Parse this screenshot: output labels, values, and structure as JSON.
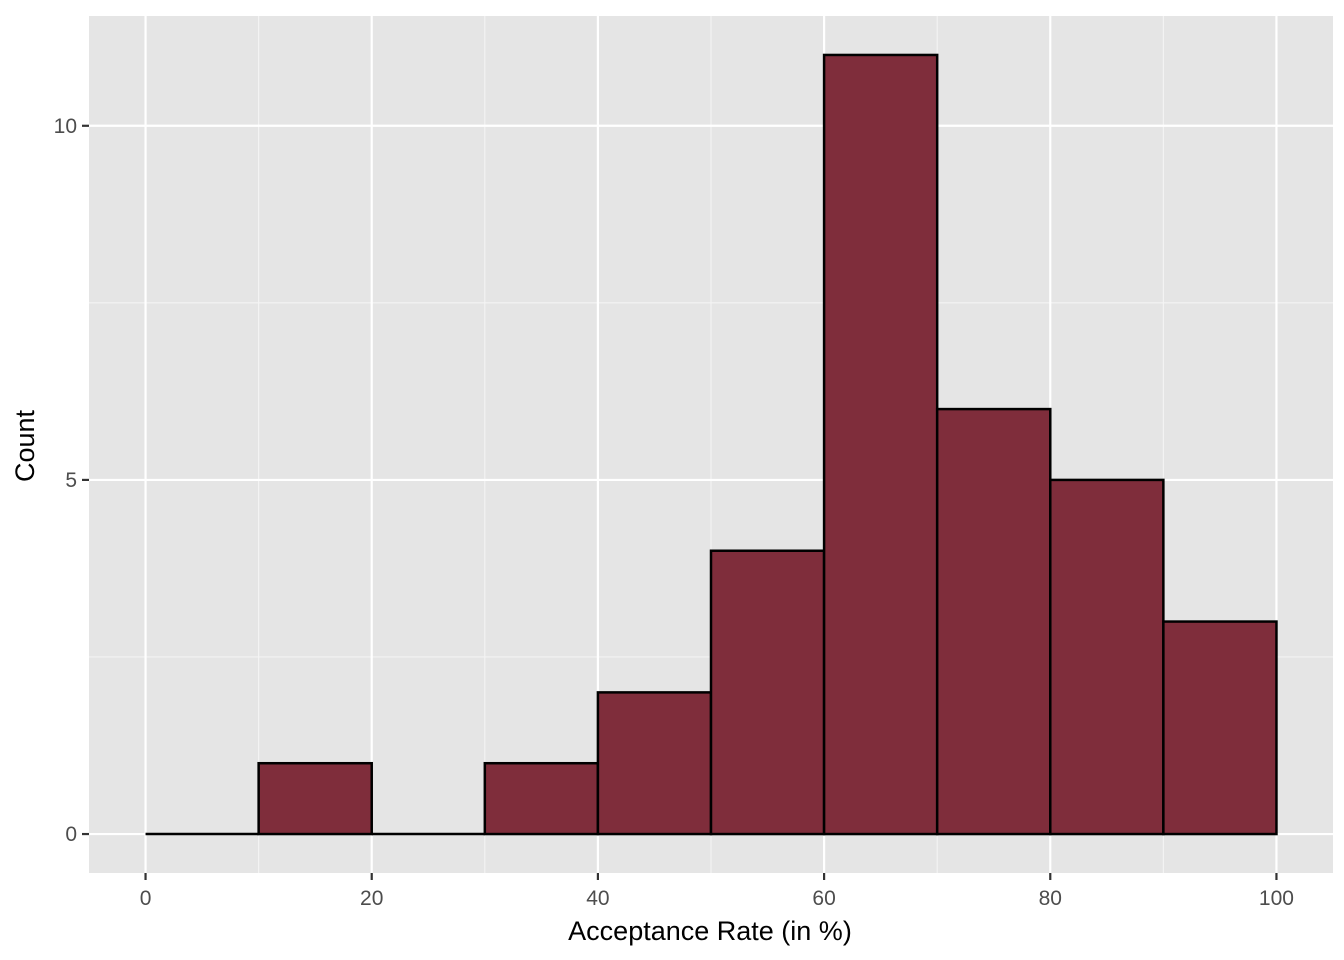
{
  "chart_data": {
    "type": "bar",
    "subtype": "histogram",
    "title": "",
    "xlabel": "Acceptance Rate (in %)",
    "ylabel": "Count",
    "bin_edges": [
      0,
      10,
      20,
      30,
      40,
      50,
      60,
      70,
      80,
      90,
      100
    ],
    "values": [
      0,
      1,
      0,
      1,
      2,
      4,
      11,
      6,
      5,
      3
    ],
    "xlim": [
      -5,
      105
    ],
    "ylim": [
      -0.55,
      11.55
    ],
    "x_ticks": [
      0,
      20,
      40,
      60,
      80,
      100
    ],
    "x_tick_labels": [
      "0",
      "20",
      "40",
      "60",
      "80",
      "100"
    ],
    "y_ticks": [
      0,
      5,
      10
    ],
    "y_tick_labels": [
      "0",
      "5",
      "10"
    ],
    "grid": true,
    "legend": "none",
    "colors": {
      "bar_fill": "#7f2d3b",
      "bar_outline": "#000000",
      "panel_background": "#e5e5e5",
      "grid": "#ffffff"
    }
  }
}
